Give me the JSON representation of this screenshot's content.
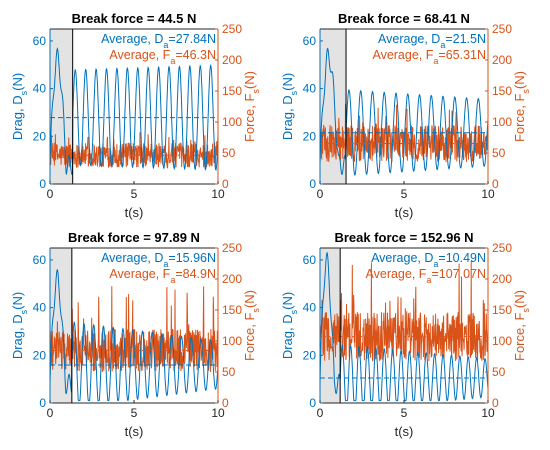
{
  "colors": {
    "drag": "#0072BD",
    "force": "#D95319",
    "shade": "#e3e3e3",
    "axis": "#262626"
  },
  "chart_data": [
    {
      "type": "line",
      "title": "Break force = 44.5 N",
      "xlabel": "t(s)",
      "ylabel_left": "Drag, D_s(N)",
      "ylabel_right": "Force, F_s(N)",
      "xlim": [
        0,
        10
      ],
      "ylim_left": [
        0,
        65
      ],
      "ylim_right": [
        0,
        250
      ],
      "xticks": [
        "0",
        "5",
        "10"
      ],
      "yticks_left": [
        "0",
        "20",
        "40",
        "60"
      ],
      "yticks_right": [
        "0",
        "50",
        "100",
        "150",
        "200",
        "250"
      ],
      "shaded_region": [
        0,
        1.35
      ],
      "legend": [
        "Average, D_a=27.84N",
        "Average, F_a=46.3N"
      ],
      "series": [
        {
          "name": "Average, D_a=27.84N",
          "axis": "left",
          "kind": "drag",
          "average": 27.84,
          "period": 0.62,
          "amp_early": 20,
          "amp_late": 22,
          "peak_early": 54
        },
        {
          "name": "Average, F_a=46.3N",
          "axis": "right",
          "kind": "force",
          "average": 46.3,
          "spike": 90,
          "jitter": 20
        }
      ]
    },
    {
      "type": "line",
      "title": "Break force = 68.41 N",
      "xlabel": "t(s)",
      "ylabel_left": "Drag, D_s(N)",
      "ylabel_right": "Force, F_s(N)",
      "xlim": [
        0,
        10
      ],
      "ylim_left": [
        0,
        65
      ],
      "ylim_right": [
        0,
        250
      ],
      "xticks": [
        "0",
        "5",
        "10"
      ],
      "yticks_left": [
        "0",
        "20",
        "40",
        "60"
      ],
      "yticks_right": [
        "0",
        "50",
        "100",
        "150",
        "200",
        "250"
      ],
      "shaded_region": [
        0,
        1.55
      ],
      "legend": [
        "Average, D_a=21.5N",
        "Average, F_a=65.31N"
      ],
      "series": [
        {
          "name": "Average, D_a=21.5N",
          "axis": "left",
          "kind": "drag",
          "average": 21.5,
          "period": 0.7,
          "amp_early": 18,
          "amp_late": 14,
          "peak_early": 55
        },
        {
          "name": "Average, F_a=65.31N",
          "axis": "right",
          "kind": "force",
          "average": 65.31,
          "spike": 130,
          "jitter": 30
        }
      ]
    },
    {
      "type": "line",
      "title": "Break force = 97.89 N",
      "xlabel": "t(s)",
      "ylabel_left": "Drag, D_s(N)",
      "ylabel_right": "Force, F_s(N)",
      "xlim": [
        0,
        10
      ],
      "ylim_left": [
        0,
        65
      ],
      "ylim_right": [
        0,
        250
      ],
      "xticks": [
        "0",
        "5",
        "10"
      ],
      "yticks_left": [
        "0",
        "20",
        "40",
        "60"
      ],
      "yticks_right": [
        "0",
        "50",
        "100",
        "150",
        "200",
        "250"
      ],
      "shaded_region": [
        0,
        1.3
      ],
      "legend": [
        "Average, D_a=15.96N",
        "Average, F_a=84.9N"
      ],
      "series": [
        {
          "name": "Average, D_a=15.96N",
          "axis": "left",
          "kind": "drag",
          "average": 15.96,
          "period": 0.58,
          "amp_early": 18,
          "amp_late": 10,
          "peak_early": 53
        },
        {
          "name": "Average, F_a=84.9N",
          "axis": "right",
          "kind": "force",
          "average": 84.9,
          "spike": 190,
          "jitter": 35
        }
      ]
    },
    {
      "type": "line",
      "title": "Break force = 152.96 N",
      "xlabel": "t(s)",
      "ylabel_left": "Drag, D_s(N)",
      "ylabel_right": "Force, F_s(N)",
      "xlim": [
        0,
        10
      ],
      "ylim_left": [
        0,
        65
      ],
      "ylim_right": [
        0,
        250
      ],
      "xticks": [
        "0",
        "5",
        "10"
      ],
      "yticks_left": [
        "0",
        "20",
        "40",
        "60"
      ],
      "yticks_right": [
        "0",
        "50",
        "100",
        "150",
        "200",
        "250"
      ],
      "shaded_region": [
        0,
        1.2
      ],
      "legend": [
        "Average, D_a=10.49N",
        "Average, F_a=107.07N"
      ],
      "series": [
        {
          "name": "Average, D_a=10.49N",
          "axis": "left",
          "kind": "drag",
          "average": 10.49,
          "period": 0.5,
          "amp_early": 14,
          "amp_late": 8,
          "peak_early": 62
        },
        {
          "name": "Average, F_a=107.07N",
          "axis": "right",
          "kind": "force",
          "average": 107.07,
          "spike": 230,
          "jitter": 40
        }
      ]
    }
  ]
}
